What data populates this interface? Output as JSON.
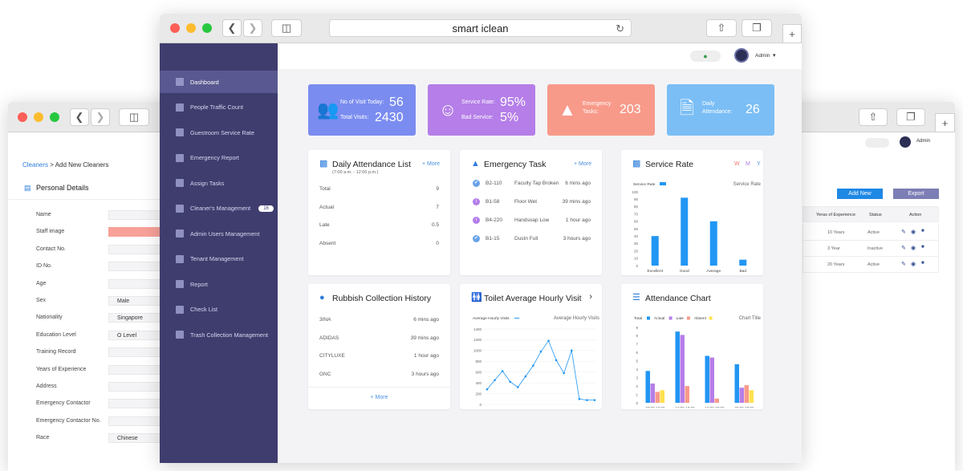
{
  "browser": {
    "title": "smart iclean"
  },
  "topbar": {
    "user": "Admin"
  },
  "sidebar": {
    "items": [
      {
        "label": "Dashboard",
        "active": true
      },
      {
        "label": "People Traffic Count"
      },
      {
        "label": "Guestroom Service Rate"
      },
      {
        "label": "Emergency Report"
      },
      {
        "label": "Assign Tasks"
      },
      {
        "label": "Cleaner's Management",
        "badge": "16"
      },
      {
        "label": "Admin Users Management"
      },
      {
        "label": "Tenant Management"
      },
      {
        "label": "Report"
      },
      {
        "label": "Check List"
      },
      {
        "label": "Trash Collection Management"
      }
    ]
  },
  "stats": {
    "visits": {
      "label1": "No of Visit Today:",
      "value1": "56",
      "label2": "Total Visits:",
      "value2": "2430",
      "color": "#7b8cf0"
    },
    "service": {
      "label1": "Service Rate:",
      "value1": "95%",
      "label2": "Bad Service:",
      "value2": "5%",
      "color": "#b57ee8"
    },
    "emergency": {
      "label1": "Emergency",
      "label2": "Tasks:",
      "value": "203",
      "color": "#f89a8a"
    },
    "attendance": {
      "label1": "Daily",
      "label2": "Attendance:",
      "value": "26",
      "color": "#7bbef5"
    }
  },
  "daily_attendance": {
    "title": "Daily Attendance List",
    "more": "+ More",
    "subtitle": "(7:00 a.m. - 12:00 p.m.)",
    "rows": [
      {
        "label": "Total",
        "value": "9"
      },
      {
        "label": "Actual",
        "value": "7"
      },
      {
        "label": "Late",
        "value": "0.5"
      },
      {
        "label": "Absent",
        "value": "0"
      }
    ]
  },
  "emergency_task": {
    "title": "Emergency Task",
    "more": "+ More",
    "rows": [
      {
        "room": "B2-110",
        "issue": "Faculty Tap Broken",
        "time": "6 mins ago",
        "status": "done"
      },
      {
        "room": "B1-58",
        "issue": "Floor Wet",
        "time": "39 mins ago",
        "status": "info"
      },
      {
        "room": "B4-220",
        "issue": "Handsoap Low",
        "time": "1 hour ago",
        "status": "info"
      },
      {
        "room": "B1-15",
        "issue": "Dustn Full",
        "time": "3 hours ago",
        "status": "done"
      }
    ]
  },
  "service_rate": {
    "title": "Service Rate",
    "periods": [
      "W",
      "M",
      "Y"
    ],
    "legend": "Service Rate",
    "chart_title": "Service Rate"
  },
  "rubbish": {
    "title": "Rubbish Collection History",
    "more": "+ More",
    "rows": [
      {
        "label": "3INA",
        "time": "6 mins ago"
      },
      {
        "label": "ADIDAS",
        "time": "39 mins ago"
      },
      {
        "label": "CITYLUXE",
        "time": "1 hour ago"
      },
      {
        "label": "GNC",
        "time": "3 hours ago"
      }
    ]
  },
  "toilet": {
    "title": "Toilet Average Hourly Visit",
    "legend": "Average Hourly Visits",
    "chart_title": "Average Hourly Visits"
  },
  "attendance_chart": {
    "title": "Attendance Chart",
    "legend": [
      "Total",
      "Actual",
      "Late",
      "Absent"
    ],
    "chart_title": "Chart Title"
  },
  "chart_data": [
    {
      "type": "bar",
      "categories": [
        "Excellent",
        "Good",
        "Average",
        "Bad"
      ],
      "values": [
        40,
        92,
        60,
        8
      ],
      "ylim": [
        0,
        100
      ],
      "ytick_labels": [
        "0",
        "10",
        "20",
        "30",
        "40",
        "50",
        "60",
        "70",
        "80",
        "90",
        "100"
      ],
      "colors": [
        "#2196f3"
      ],
      "series": [
        {
          "name": "Service Rate",
          "values": [
            40,
            92,
            60,
            8
          ]
        }
      ]
    },
    {
      "type": "line",
      "x": [
        "12",
        "13",
        "14",
        "15",
        "16",
        "17",
        "18",
        "19",
        "20",
        "21",
        "22",
        "23",
        "0",
        "1",
        "2"
      ],
      "values": [
        280,
        450,
        620,
        420,
        320,
        520,
        720,
        980,
        1180,
        820,
        580,
        1000,
        100,
        80,
        80
      ],
      "ylim": [
        0,
        1400
      ],
      "ytick_labels": [
        "0",
        "200",
        "400",
        "600",
        "800",
        "1000",
        "1200",
        "1400"
      ],
      "series": [
        {
          "name": "Average Hourly Visits"
        }
      ]
    },
    {
      "type": "bar",
      "categories": [
        "07:00-12:00",
        "12:00-18:00",
        "18:00-00:00",
        "00:00-07:00"
      ],
      "ylim": [
        0,
        9
      ],
      "ytick_labels": [
        "0",
        "1",
        "2",
        "3",
        "4",
        "5",
        "6",
        "7",
        "8",
        "9"
      ],
      "series": [
        {
          "name": "Total",
          "color": "#2196f3",
          "values": [
            3.8,
            8.5,
            5.6,
            4.6
          ]
        },
        {
          "name": "Actual",
          "color": "#b57ee8",
          "values": [
            2.3,
            8.1,
            5.4,
            1.8
          ]
        },
        {
          "name": "Late",
          "color": "#f89a8a",
          "values": [
            1.3,
            2.0,
            0.5,
            2.1
          ]
        },
        {
          "name": "Absent",
          "color": "#ffe14d",
          "values": [
            1.5,
            0,
            0,
            1.5
          ]
        }
      ]
    }
  ],
  "back": {
    "breadcrumb_link": "Cleaners",
    "breadcrumb_rest": " > Add New Cleaners",
    "section": "Personal Details",
    "fields": [
      {
        "label": "Name",
        "value": ""
      },
      {
        "label": "Staff image",
        "value": ""
      },
      {
        "label": "Contact No.",
        "value": ""
      },
      {
        "label": "ID No.",
        "value": ""
      },
      {
        "label": "Age",
        "value": ""
      },
      {
        "label": "Sex",
        "value": "Male"
      },
      {
        "label": "Nationality",
        "value": "Singapore"
      },
      {
        "label": "Education Level",
        "value": "O Level"
      },
      {
        "label": "Training Record",
        "value": ""
      },
      {
        "label": "Years of Experience",
        "value": ""
      },
      {
        "label": "Address",
        "value": ""
      },
      {
        "label": "Emergency Contactor",
        "value": ""
      },
      {
        "label": "Emergency Contactor No.",
        "value": ""
      },
      {
        "label": "Race",
        "value": "Chinese"
      }
    ],
    "add_new": "Add New",
    "export": "Export",
    "user": "Admin",
    "table_headers": [
      "Yeras of Experience",
      "Status",
      "Action"
    ],
    "table_rows": [
      {
        "exp": "10 Years",
        "status": "Active"
      },
      {
        "exp": "3 Year",
        "status": "Inactive"
      },
      {
        "exp": "20 Years",
        "status": "Active"
      }
    ]
  }
}
